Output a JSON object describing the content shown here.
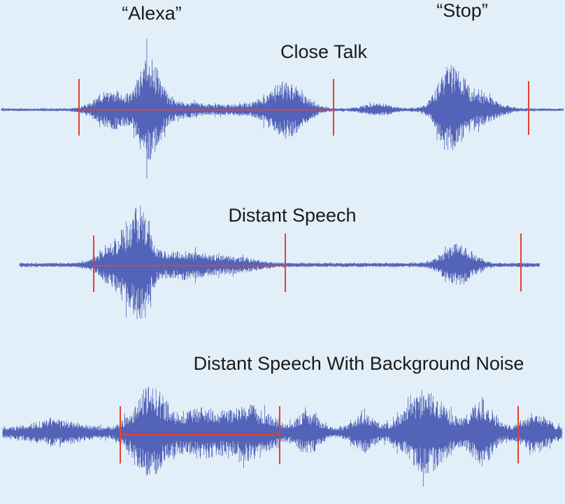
{
  "labels": {
    "word_alexa": "“Alexa”",
    "word_stop": "“Stop”"
  },
  "panels": [
    {
      "id": "close-talk",
      "title": "Close Talk",
      "noise": "low"
    },
    {
      "id": "distant-speech",
      "title": "Distant Speech",
      "noise": "medium"
    },
    {
      "id": "distant-speech-noise",
      "title": "Distant Speech With Background Noise",
      "noise": "high"
    }
  ],
  "colors": {
    "background": "#e3eff8",
    "waveform": "#5263b8",
    "marker": "#e8402e",
    "text": "#1a1a1a"
  }
}
